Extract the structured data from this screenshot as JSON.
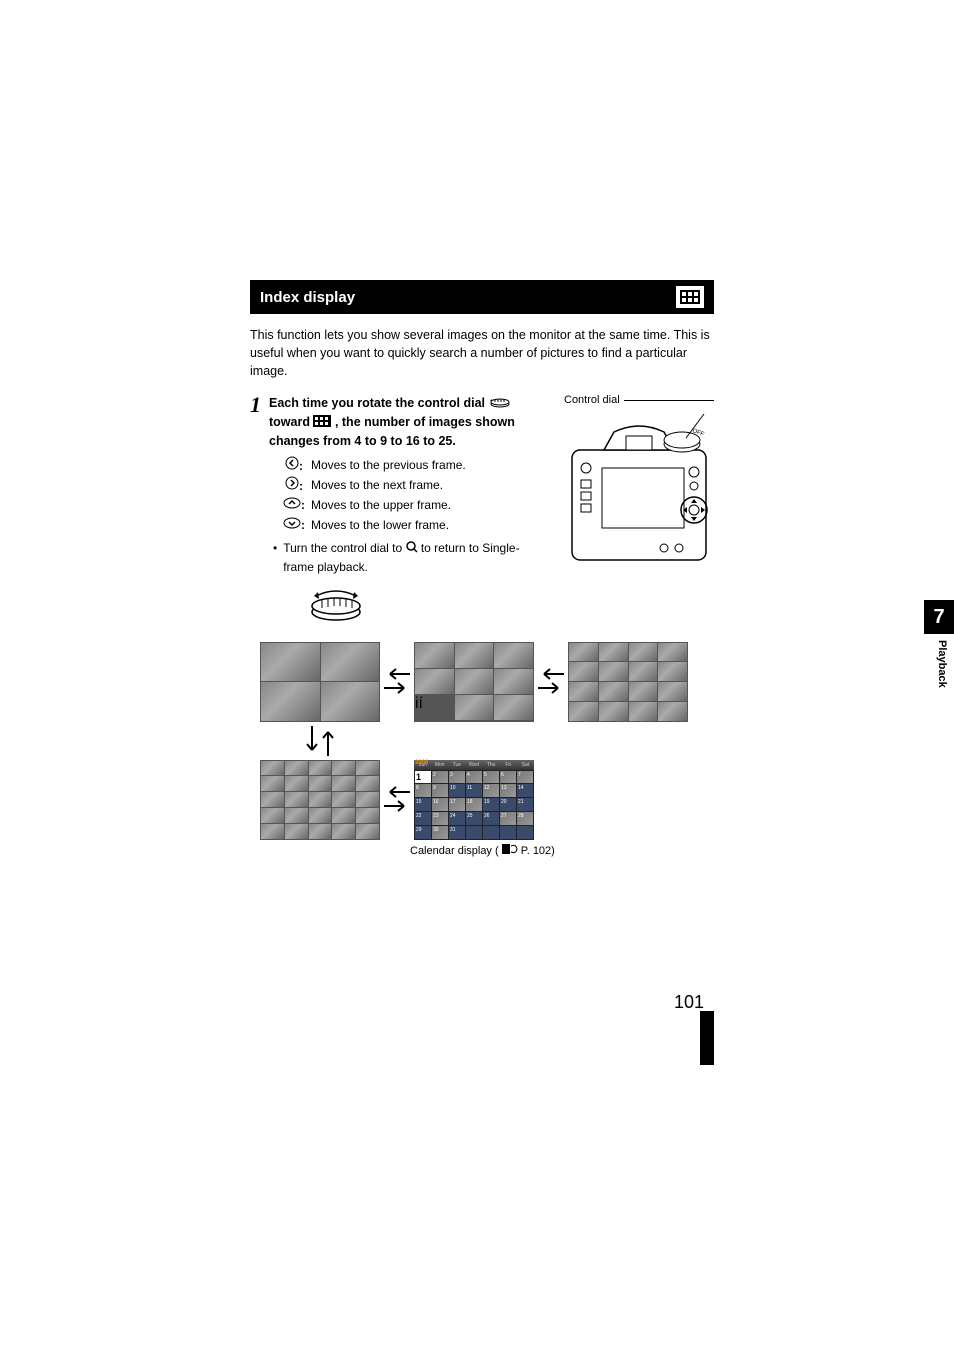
{
  "section": {
    "title": "Index display"
  },
  "intro": "This function lets you show several images on the monitor at the same time. This is useful when you want to quickly search a number of pictures to find a particular image.",
  "step": {
    "number": "1",
    "instruction_pre": "Each time you rotate the control dial",
    "instruction_mid": "toward",
    "instruction_post": ", the number of images shown changes from 4 to 9 to 16 to 25.",
    "controls": {
      "left_arrow": "Moves to the previous frame.",
      "right_arrow": "Moves to the next frame.",
      "up_arrow": "Moves to the upper frame.",
      "down_arrow": "Moves to the lower frame."
    },
    "bullet_pre": "Turn the control dial to",
    "bullet_post": "to return to Single-frame playback."
  },
  "right_label": "Control dial",
  "calendar": {
    "year": "2006",
    "month": "Sun",
    "days": [
      "Sun",
      "Mon",
      "Tue",
      "Wed",
      "Thu",
      "Fri",
      "Sat"
    ],
    "cells": [
      {
        "n": "1",
        "first": true
      },
      {
        "n": "2",
        "img": true
      },
      {
        "n": "3",
        "img": true
      },
      {
        "n": "4",
        "img": true
      },
      {
        "n": "5",
        "img": true
      },
      {
        "n": "6",
        "img": true
      },
      {
        "n": "7",
        "img": true
      },
      {
        "n": "8",
        "img": true
      },
      {
        "n": "9",
        "img": true
      },
      {
        "n": "10"
      },
      {
        "n": "11"
      },
      {
        "n": "12",
        "img": true
      },
      {
        "n": "13",
        "img": true
      },
      {
        "n": "14"
      },
      {
        "n": "15"
      },
      {
        "n": "16",
        "img": true
      },
      {
        "n": "17",
        "img": true
      },
      {
        "n": "18",
        "img": true
      },
      {
        "n": "19"
      },
      {
        "n": "20"
      },
      {
        "n": "21"
      },
      {
        "n": "22"
      },
      {
        "n": "23",
        "img": true
      },
      {
        "n": "24"
      },
      {
        "n": "25"
      },
      {
        "n": "26"
      },
      {
        "n": "27",
        "img": true
      },
      {
        "n": "28",
        "img": true
      },
      {
        "n": "29"
      },
      {
        "n": "30",
        "img": true
      },
      {
        "n": "31"
      },
      {
        "n": ""
      },
      {
        "n": ""
      },
      {
        "n": ""
      },
      {
        "n": ""
      }
    ],
    "caption_pre": "Calendar display (",
    "caption_post": " P. 102)"
  },
  "side": {
    "chapter": "7",
    "label": "Playback"
  },
  "page_number": "101",
  "colors": {
    "black": "#000000",
    "white": "#ffffff"
  }
}
